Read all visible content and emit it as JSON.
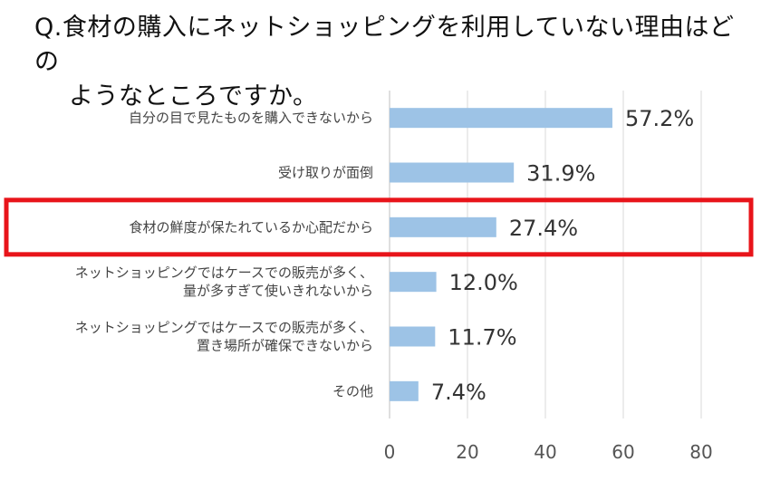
{
  "title_line1": "Q.食材の購入にネットショッピングを利用していない理由はどの",
  "title_line2": "ようなところですか。",
  "chart_data": {
    "type": "bar",
    "orientation": "horizontal",
    "categories": [
      [
        "自分の目で見たものを購入できないから"
      ],
      [
        "受け取りが面倒"
      ],
      [
        "食材の鮮度が保たれているか心配だから"
      ],
      [
        "ネットショッピングではケースでの販売が多く、",
        "量が多すぎて使いきれないから"
      ],
      [
        "ネットショッピングではケースでの販売が多く、",
        "置き場所が確保できないから"
      ],
      [
        "その他"
      ]
    ],
    "values": [
      57.2,
      31.9,
      27.4,
      12.0,
      11.7,
      7.4
    ],
    "value_labels": [
      "57.2%",
      "31.9%",
      "27.4%",
      "12.0%",
      "11.7%",
      "7.4%"
    ],
    "xlim": [
      0,
      80
    ],
    "xticks": [
      "0",
      "20",
      "40",
      "60",
      "80"
    ],
    "xtick_values": [
      0,
      20,
      40,
      60,
      80
    ],
    "grid": true,
    "bar_color": "#9dc3e6",
    "highlight_index": 2,
    "highlight_color": "#e8141a"
  }
}
